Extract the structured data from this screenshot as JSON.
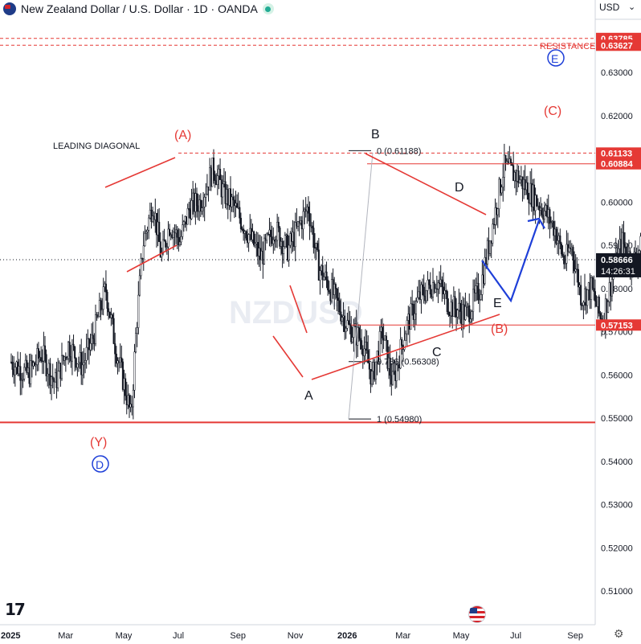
{
  "header": {
    "title": "New Zealand Dollar / U.S. Dollar · 1D · OANDA",
    "currency": "USD"
  },
  "watermark": "NZDUSD",
  "chart_data": {
    "type": "candlestick",
    "price_ticks": [
      "0.63000",
      "0.62000",
      "0.61000",
      "0.60000",
      "0.59000",
      "0.58000",
      "0.57000",
      "0.56000",
      "0.55000",
      "0.54000",
      "0.53000",
      "0.52000",
      "0.51000"
    ],
    "price_tick_values": [
      0.63,
      0.62,
      0.61,
      0.6,
      0.59,
      0.58,
      0.57,
      0.56,
      0.55,
      0.54,
      0.53,
      0.52,
      0.51
    ],
    "time_ticks": [
      "2025",
      "Mar",
      "May",
      "Jul",
      "Sep",
      "Nov",
      "2026",
      "Mar",
      "May",
      "Jul",
      "Sep"
    ],
    "bold_time_ticks": [
      "2025",
      "2026"
    ],
    "ylim": [
      0.503,
      0.642
    ],
    "price_path": [
      {
        "t": 0,
        "p": 0.563
      },
      {
        "t": 0.05,
        "p": 0.56
      },
      {
        "t": 0.09,
        "p": 0.565
      },
      {
        "t": 0.13,
        "p": 0.558
      },
      {
        "t": 0.17,
        "p": 0.567
      },
      {
        "t": 0.21,
        "p": 0.562
      },
      {
        "t": 0.24,
        "p": 0.568
      },
      {
        "t": 0.28,
        "p": 0.58
      },
      {
        "t": 0.31,
        "p": 0.566
      },
      {
        "t": 0.34,
        "p": 0.556
      },
      {
        "t": 0.355,
        "p": 0.55
      },
      {
        "t": 0.37,
        "p": 0.57
      },
      {
        "t": 0.39,
        "p": 0.59
      },
      {
        "t": 0.42,
        "p": 0.6
      },
      {
        "t": 0.445,
        "p": 0.587
      },
      {
        "t": 0.47,
        "p": 0.595
      },
      {
        "t": 0.5,
        "p": 0.591
      },
      {
        "t": 0.53,
        "p": 0.599
      },
      {
        "t": 0.56,
        "p": 0.6
      },
      {
        "t": 0.6,
        "p": 0.608
      },
      {
        "t": 0.63,
        "p": 0.602
      },
      {
        "t": 0.66,
        "p": 0.599
      },
      {
        "t": 0.7,
        "p": 0.593
      },
      {
        "t": 0.74,
        "p": 0.587
      },
      {
        "t": 0.78,
        "p": 0.594
      },
      {
        "t": 0.82,
        "p": 0.589
      },
      {
        "t": 0.85,
        "p": 0.594
      },
      {
        "t": 0.88,
        "p": 0.599
      },
      {
        "t": 0.91,
        "p": 0.585
      },
      {
        "t": 0.94,
        "p": 0.581
      },
      {
        "t": 0.97,
        "p": 0.576
      },
      {
        "t": 1.0,
        "p": 0.571
      },
      {
        "t": 1.04,
        "p": 0.568
      },
      {
        "t": 1.07,
        "p": 0.559
      },
      {
        "t": 1.1,
        "p": 0.57
      },
      {
        "t": 1.13,
        "p": 0.558
      },
      {
        "t": 1.17,
        "p": 0.571
      },
      {
        "t": 1.21,
        "p": 0.578
      },
      {
        "t": 1.26,
        "p": 0.582
      },
      {
        "t": 1.3,
        "p": 0.576
      },
      {
        "t": 1.35,
        "p": 0.574
      },
      {
        "t": 1.39,
        "p": 0.58
      },
      {
        "t": 1.43,
        "p": 0.596
      },
      {
        "t": 1.46,
        "p": 0.608
      },
      {
        "t": 1.5,
        "p": 0.606
      },
      {
        "t": 1.54,
        "p": 0.602
      },
      {
        "t": 1.58,
        "p": 0.598
      },
      {
        "t": 1.61,
        "p": 0.594
      },
      {
        "t": 1.64,
        "p": 0.586
      },
      {
        "t": 1.66,
        "p": 0.59
      },
      {
        "t": 1.69,
        "p": 0.578
      },
      {
        "t": 1.72,
        "p": 0.58
      },
      {
        "t": 1.75,
        "p": 0.572
      },
      {
        "t": 1.78,
        "p": 0.582
      },
      {
        "t": 1.81,
        "p": 0.591
      },
      {
        "t": 1.84,
        "p": 0.586
      },
      {
        "t": 1.87,
        "p": 0.59
      },
      {
        "t": 1.89,
        "p": 0.596
      },
      {
        "t": 1.91,
        "p": 0.593
      },
      {
        "t": 1.93,
        "p": 0.5867
      }
    ],
    "time_axis": {
      "2025": 0.0,
      "Mar": 0.16,
      "May": 0.33,
      "Jul": 0.5,
      "Sep": 0.67,
      "Nov": 0.84,
      "2026": 1.0,
      "Mar_2026": 1.16,
      "May_2026": 1.33,
      "Jul_2026": 1.5,
      "Sep_2026": 1.67
    },
    "levels": [
      {
        "price": 0.63785,
        "label": "0.63785",
        "style": "dashed",
        "color": "#e53935"
      },
      {
        "price": 0.63627,
        "label": "0.63627",
        "style": "dashed",
        "color": "#e53935"
      },
      {
        "price": 0.61133,
        "label": "0.61133",
        "style": "dashed",
        "color": "#e53935"
      },
      {
        "price": 0.60884,
        "label": "0.60884",
        "style": "solid",
        "color": "#e53935"
      },
      {
        "price": 0.57153,
        "label": "0.57153",
        "style": "solid",
        "color": "#e53935"
      },
      {
        "price": 0.549,
        "label": "",
        "style": "solid",
        "color": "#e53935"
      }
    ],
    "current_price": {
      "label": "0.58666",
      "countdown": "14:26:31"
    },
    "fib_labels": [
      {
        "level": "0",
        "value": "(0.61188)",
        "price": 0.61188
      },
      {
        "level": "0.786",
        "value": "(0.56308)",
        "price": 0.56308
      },
      {
        "level": "1",
        "value": "(0.54980)",
        "price": 0.5498
      }
    ],
    "annotations": {
      "resistance": "RESISTANCE",
      "leading_diagonal": "LEADING DIAGONAL",
      "wave_A_red": "(A)",
      "wave_C_red": "(C)",
      "wave_B_red": "(B)",
      "wave_Y_red": "(Y)",
      "wave_D_blue": "D",
      "wave_E_blue": "E",
      "wave_A": "A",
      "wave_B": "B",
      "wave_C": "C",
      "wave_D": "D",
      "wave_E": "E"
    }
  },
  "colors": {
    "red": "#e53935",
    "blue": "#1e3fd8",
    "candle": "#131722",
    "grid": "#f0f3fa",
    "axis_text": "#131722",
    "price_tag_red": "#e53935",
    "price_tag_black": "#131722"
  }
}
